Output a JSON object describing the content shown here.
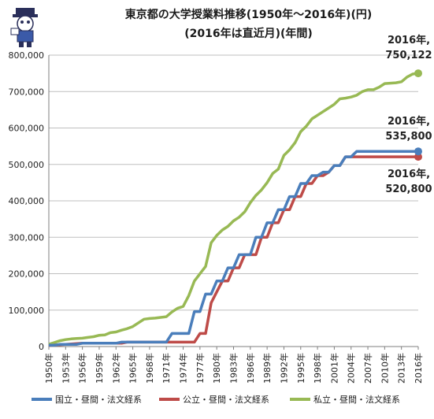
{
  "title_line1": "東京都の大学授業料推移(1950年～2016年)(円)",
  "title_line2": "(2016年は直近月)(年間)",
  "chart_data": {
    "type": "line",
    "title": "東京都の大学授業料推移(1950年～2016年)(円)",
    "subtitle": "(2016年は直近月)(年間)",
    "xlabel": "",
    "ylabel": "",
    "ylim": [
      0,
      800000
    ],
    "yticks": [
      "0",
      "100,000",
      "200,000",
      "300,000",
      "400,000",
      "500,000",
      "600,000",
      "700,000",
      "800,000"
    ],
    "ytick_values": [
      0,
      100000,
      200000,
      300000,
      400000,
      500000,
      600000,
      700000,
      800000
    ],
    "xticks": [
      "1950年",
      "1953年",
      "1956年",
      "1959年",
      "1962年",
      "1965年",
      "1968年",
      "1971年",
      "1974年",
      "1977年",
      "1980年",
      "1983年",
      "1986年",
      "1989年",
      "1992年",
      "1995年",
      "1998年",
      "2001年",
      "2004年",
      "2007年",
      "2010年",
      "2013年",
      "2016年"
    ],
    "grid": "horizontal",
    "legend": "bottom",
    "x": [
      1950,
      1951,
      1952,
      1953,
      1954,
      1955,
      1956,
      1957,
      1958,
      1959,
      1960,
      1961,
      1962,
      1963,
      1964,
      1965,
      1966,
      1967,
      1968,
      1969,
      1970,
      1971,
      1972,
      1973,
      1974,
      1975,
      1976,
      1977,
      1978,
      1979,
      1980,
      1981,
      1982,
      1983,
      1984,
      1985,
      1986,
      1987,
      1988,
      1989,
      1990,
      1991,
      1992,
      1993,
      1994,
      1995,
      1996,
      1997,
      1998,
      1999,
      2000,
      2001,
      2002,
      2003,
      2004,
      2005,
      2006,
      2007,
      2008,
      2009,
      2010,
      2011,
      2012,
      2013,
      2014,
      2015,
      2016
    ],
    "series": [
      {
        "name": "国立・昼間・法文経系",
        "color": "#4a7ebb",
        "values": [
          3600,
          3600,
          6000,
          6000,
          6000,
          6000,
          9000,
          9000,
          9000,
          9000,
          9000,
          9000,
          9000,
          12000,
          12000,
          12000,
          12000,
          12000,
          12000,
          12000,
          12000,
          12000,
          36000,
          36000,
          36000,
          36000,
          96000,
          96000,
          144000,
          144000,
          180000,
          180000,
          216000,
          216000,
          252000,
          252000,
          252000,
          300000,
          300000,
          339600,
          339600,
          375600,
          375600,
          411600,
          411600,
          447600,
          447600,
          469200,
          469200,
          478800,
          478800,
          496800,
          496800,
          520800,
          520800,
          535800,
          535800,
          535800,
          535800,
          535800,
          535800,
          535800,
          535800,
          535800,
          535800,
          535800,
          535800
        ]
      },
      {
        "name": "公立・昼間・法文経系",
        "color": "#be4b48",
        "values": [
          3000,
          4000,
          5000,
          6000,
          7000,
          8000,
          9000,
          9000,
          9000,
          9000,
          9000,
          9000,
          9000,
          9000,
          12000,
          12000,
          12000,
          12000,
          12000,
          12000,
          12000,
          12000,
          12000,
          12000,
          12000,
          12000,
          12000,
          36000,
          36000,
          120000,
          150000,
          180000,
          180000,
          216000,
          216000,
          252000,
          252000,
          252000,
          300000,
          300000,
          339600,
          339600,
          375600,
          375600,
          411600,
          411600,
          447600,
          447600,
          469200,
          469200,
          478800,
          496800,
          496800,
          520800,
          520800,
          520800,
          520800,
          520800,
          520800,
          520800,
          520800,
          520800,
          520800,
          520800,
          520800,
          520800,
          520800
        ]
      },
      {
        "name": "私立・昼間・法文経系",
        "color": "#98b954",
        "values": [
          6000,
          11000,
          16000,
          19000,
          21000,
          22000,
          23000,
          25000,
          27000,
          31000,
          32000,
          38000,
          40000,
          45000,
          49000,
          55000,
          65000,
          75000,
          77000,
          78000,
          80000,
          82000,
          95000,
          105000,
          110000,
          140000,
          180000,
          200000,
          220000,
          285000,
          305000,
          320000,
          330000,
          345000,
          355000,
          370000,
          395000,
          415000,
          430000,
          450000,
          475000,
          487000,
          525000,
          540000,
          560000,
          590000,
          605000,
          625000,
          635000,
          645000,
          655000,
          665000,
          680000,
          682000,
          685000,
          690000,
          700000,
          705000,
          705000,
          712000,
          722000,
          723000,
          724000,
          727000,
          740000,
          748000,
          750122
        ]
      }
    ],
    "annotations": [
      {
        "series": "私立・昼間・法文経系",
        "year_text": "2016年,",
        "value_text": "750,122"
      },
      {
        "series": "国立・昼間・法文経系",
        "year_text": "2016年,",
        "value_text": "535,800"
      },
      {
        "series": "公立・昼間・法文経系",
        "year_text": "2016年,",
        "value_text": "520,800"
      }
    ]
  }
}
